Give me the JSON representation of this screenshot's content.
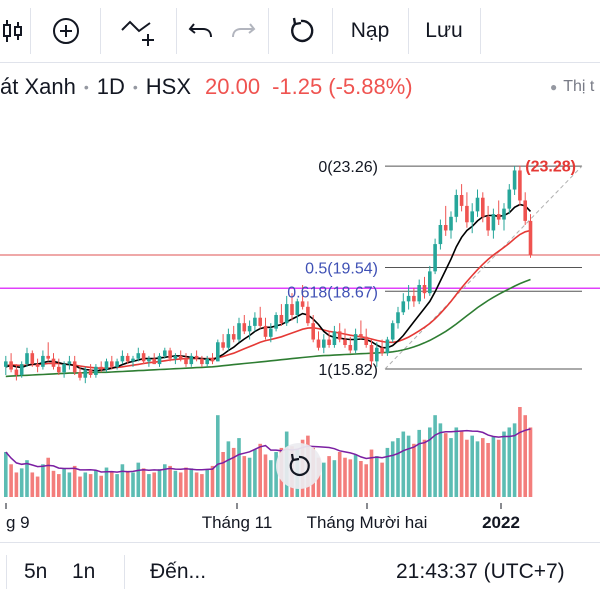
{
  "toolbar": {
    "add_indicator_icon": "plus-circle-icon",
    "draw_icon": "trend-line-plus-icon",
    "undo_icon": "undo-icon",
    "redo_icon": "redo-icon",
    "reload_icon": "reload-icon",
    "load_label": "Nạp",
    "save_label": "Lưu"
  },
  "legend": {
    "symbol": "át Xanh",
    "interval": "1D",
    "exchange": "HSX",
    "price": "20.00",
    "change": "-1.25",
    "change_pct": "(-5.88%)",
    "market_status": "Thị t"
  },
  "colors": {
    "up": "#26a69a",
    "down": "#ef5350",
    "ma_short": "#000000",
    "ma_mid": "#e53935",
    "ma_long": "#2e7d32",
    "volume_ma": "#7b1fa2",
    "fib_level": "#3f51b5",
    "fib_price_line": "#e57373",
    "fib_level_line": "#e040fb"
  },
  "chart_data": {
    "type": "candlestick",
    "y_range": [
      14.5,
      24.4
    ],
    "x_labels": [
      "g 9",
      "Tháng 11",
      "Tháng Mười hai",
      "2022"
    ],
    "fibonacci": {
      "levels": [
        {
          "label": "0(23.26)",
          "value": 23.26
        },
        {
          "label": "0.5(19.54)",
          "value": 19.54
        },
        {
          "label": "0.618(18.67)",
          "value": 18.67
        },
        {
          "label": "1(15.82)",
          "value": 15.82
        }
      ],
      "top_label": "(23.28)",
      "top_value": 23.28
    },
    "price_line": 20.0,
    "ohlc": [
      [
        15.9,
        16.3,
        15.6,
        16.1
      ],
      [
        16.1,
        16.4,
        15.7,
        15.8
      ],
      [
        15.8,
        16.0,
        15.4,
        15.6
      ],
      [
        15.6,
        16.1,
        15.5,
        16.0
      ],
      [
        16.0,
        16.6,
        15.9,
        16.4
      ],
      [
        16.4,
        16.5,
        15.9,
        16.0
      ],
      [
        16.0,
        16.2,
        15.7,
        15.9
      ],
      [
        15.9,
        16.5,
        15.8,
        16.3
      ],
      [
        16.3,
        16.8,
        16.1,
        16.2
      ],
      [
        16.2,
        16.4,
        15.8,
        15.9
      ],
      [
        15.9,
        16.2,
        15.6,
        15.7
      ],
      [
        15.7,
        16.1,
        15.5,
        16.0
      ],
      [
        16.0,
        16.3,
        15.8,
        16.1
      ],
      [
        16.1,
        16.3,
        15.6,
        15.7
      ],
      [
        15.7,
        15.9,
        15.4,
        15.5
      ],
      [
        15.5,
        15.9,
        15.3,
        15.8
      ],
      [
        15.8,
        16.0,
        15.5,
        15.6
      ],
      [
        15.6,
        16.0,
        15.5,
        15.9
      ],
      [
        15.9,
        16.1,
        15.7,
        15.8
      ],
      [
        15.8,
        16.2,
        15.7,
        16.1
      ],
      [
        16.1,
        16.3,
        15.8,
        15.9
      ],
      [
        15.9,
        16.2,
        15.8,
        16.1
      ],
      [
        16.1,
        16.5,
        16.0,
        16.3
      ],
      [
        16.3,
        16.4,
        16.0,
        16.1
      ],
      [
        16.1,
        16.3,
        15.9,
        16.2
      ],
      [
        16.2,
        16.6,
        16.1,
        16.4
      ],
      [
        16.4,
        16.5,
        16.0,
        16.1
      ],
      [
        16.1,
        16.3,
        15.9,
        16.2
      ],
      [
        16.2,
        16.4,
        16.0,
        16.0
      ],
      [
        16.0,
        16.4,
        15.9,
        16.3
      ],
      [
        16.3,
        16.6,
        16.2,
        16.5
      ],
      [
        16.5,
        16.6,
        16.1,
        16.2
      ],
      [
        16.2,
        16.4,
        16.0,
        16.3
      ],
      [
        16.3,
        16.5,
        16.1,
        16.2
      ],
      [
        16.2,
        16.4,
        15.9,
        16.0
      ],
      [
        16.0,
        16.4,
        15.9,
        16.3
      ],
      [
        16.3,
        16.5,
        16.1,
        16.2
      ],
      [
        16.2,
        16.3,
        15.9,
        16.0
      ],
      [
        16.0,
        16.3,
        15.9,
        16.2
      ],
      [
        16.2,
        16.4,
        16.0,
        16.1
      ],
      [
        16.1,
        16.9,
        16.1,
        16.8
      ],
      [
        16.8,
        17.1,
        16.5,
        16.6
      ],
      [
        16.6,
        17.3,
        16.5,
        17.1
      ],
      [
        17.1,
        17.4,
        16.8,
        16.9
      ],
      [
        16.9,
        17.7,
        16.8,
        17.5
      ],
      [
        17.5,
        17.8,
        17.1,
        17.2
      ],
      [
        17.2,
        17.6,
        16.9,
        17.4
      ],
      [
        17.4,
        17.9,
        17.2,
        17.7
      ],
      [
        17.7,
        18.1,
        17.3,
        17.4
      ],
      [
        17.4,
        17.7,
        16.9,
        17.0
      ],
      [
        17.0,
        17.5,
        16.8,
        17.3
      ],
      [
        17.3,
        17.9,
        17.2,
        17.8
      ],
      [
        17.8,
        18.2,
        17.4,
        17.5
      ],
      [
        17.5,
        18.5,
        17.4,
        18.2
      ],
      [
        18.2,
        18.6,
        17.6,
        17.8
      ],
      [
        17.8,
        18.4,
        17.5,
        18.3
      ],
      [
        18.3,
        18.9,
        18.0,
        18.1
      ],
      [
        18.1,
        18.3,
        17.4,
        17.5
      ],
      [
        17.5,
        17.8,
        16.8,
        16.9
      ],
      [
        16.9,
        17.2,
        16.5,
        16.6
      ],
      [
        16.6,
        17.1,
        16.4,
        16.9
      ],
      [
        16.9,
        17.2,
        16.6,
        16.7
      ],
      [
        16.7,
        17.4,
        16.6,
        17.2
      ],
      [
        17.2,
        17.5,
        16.8,
        16.9
      ],
      [
        16.9,
        17.3,
        16.6,
        16.7
      ],
      [
        16.7,
        17.0,
        16.4,
        16.5
      ],
      [
        16.5,
        17.3,
        16.4,
        17.1
      ],
      [
        17.1,
        17.6,
        16.9,
        17.0
      ],
      [
        17.0,
        17.3,
        16.6,
        16.7
      ],
      [
        16.7,
        16.9,
        15.9,
        16.1
      ],
      [
        16.1,
        16.8,
        15.9,
        16.6
      ],
      [
        16.6,
        16.9,
        16.3,
        16.4
      ],
      [
        16.4,
        17.0,
        16.3,
        16.9
      ],
      [
        16.9,
        17.6,
        16.8,
        17.5
      ],
      [
        17.5,
        18.1,
        17.3,
        17.9
      ],
      [
        17.9,
        18.6,
        17.8,
        18.3
      ],
      [
        18.3,
        18.9,
        18.0,
        18.5
      ],
      [
        18.5,
        18.8,
        18.1,
        18.3
      ],
      [
        18.3,
        19.1,
        18.2,
        18.9
      ],
      [
        18.9,
        19.2,
        18.4,
        18.6
      ],
      [
        18.6,
        19.6,
        18.5,
        19.4
      ],
      [
        19.4,
        20.6,
        19.3,
        20.4
      ],
      [
        20.4,
        21.3,
        20.2,
        21.1
      ],
      [
        21.1,
        21.8,
        20.7,
        20.9
      ],
      [
        20.9,
        21.6,
        20.6,
        21.4
      ],
      [
        21.4,
        22.4,
        21.2,
        22.2
      ],
      [
        22.2,
        22.6,
        21.6,
        21.8
      ],
      [
        21.8,
        22.3,
        21.0,
        21.2
      ],
      [
        21.2,
        21.9,
        20.8,
        21.6
      ],
      [
        21.6,
        22.4,
        21.4,
        22.1
      ],
      [
        22.1,
        22.3,
        21.2,
        21.4
      ],
      [
        21.4,
        21.8,
        20.7,
        20.9
      ],
      [
        20.9,
        21.7,
        20.6,
        21.5
      ],
      [
        21.5,
        22.0,
        21.1,
        21.3
      ],
      [
        21.3,
        21.9,
        20.9,
        21.7
      ],
      [
        21.7,
        22.6,
        21.5,
        22.4
      ],
      [
        22.4,
        23.26,
        22.2,
        23.1
      ],
      [
        23.1,
        23.28,
        21.8,
        22.0
      ],
      [
        22.0,
        22.3,
        21.1,
        21.25
      ],
      [
        21.25,
        21.5,
        19.9,
        20.0
      ]
    ],
    "ma_short": [
      15.9,
      15.95,
      15.9,
      15.88,
      15.95,
      16.0,
      16.0,
      16.05,
      16.1,
      16.1,
      16.05,
      16.0,
      15.98,
      15.95,
      15.85,
      15.8,
      15.78,
      15.75,
      15.78,
      15.8,
      15.85,
      15.9,
      15.98,
      16.05,
      16.1,
      16.15,
      16.2,
      16.2,
      16.2,
      16.22,
      16.25,
      16.28,
      16.3,
      16.3,
      16.28,
      16.25,
      16.22,
      16.2,
      16.18,
      16.15,
      16.25,
      16.35,
      16.5,
      16.62,
      16.78,
      16.92,
      17.05,
      17.2,
      17.3,
      17.35,
      17.35,
      17.4,
      17.45,
      17.55,
      17.65,
      17.75,
      17.85,
      17.8,
      17.65,
      17.45,
      17.2,
      17.05,
      16.98,
      16.95,
      16.92,
      16.9,
      16.9,
      16.92,
      16.9,
      16.82,
      16.7,
      16.6,
      16.6,
      16.68,
      16.85,
      17.05,
      17.3,
      17.55,
      17.8,
      18.05,
      18.3,
      18.65,
      19.05,
      19.45,
      19.85,
      20.3,
      20.65,
      20.9,
      21.05,
      21.25,
      21.4,
      21.45,
      21.45,
      21.42,
      21.45,
      21.55,
      21.75,
      21.85,
      21.8,
      21.6
    ],
    "ma_mid": [
      15.95,
      15.97,
      15.96,
      15.95,
      15.96,
      15.98,
      15.99,
      16.0,
      16.02,
      16.03,
      16.02,
      16.0,
      15.98,
      15.96,
      15.93,
      15.9,
      15.88,
      15.86,
      15.85,
      15.85,
      15.86,
      15.88,
      15.9,
      15.93,
      15.96,
      15.99,
      16.02,
      16.05,
      16.07,
      16.09,
      16.12,
      16.15,
      16.17,
      16.19,
      16.2,
      16.2,
      16.2,
      16.2,
      16.2,
      16.2,
      16.23,
      16.28,
      16.34,
      16.4,
      16.48,
      16.56,
      16.64,
      16.72,
      16.8,
      16.86,
      16.9,
      16.95,
      17.0,
      17.07,
      17.14,
      17.21,
      17.28,
      17.32,
      17.33,
      17.3,
      17.25,
      17.2,
      17.17,
      17.14,
      17.1,
      17.06,
      17.03,
      17.0,
      16.97,
      16.92,
      16.87,
      16.83,
      16.8,
      16.8,
      16.83,
      16.9,
      16.99,
      17.1,
      17.22,
      17.35,
      17.49,
      17.66,
      17.86,
      18.07,
      18.3,
      18.55,
      18.8,
      19.03,
      19.25,
      19.46,
      19.66,
      19.84,
      20.0,
      20.14,
      20.28,
      20.43,
      20.6,
      20.75,
      20.85,
      20.9
    ],
    "ma_long": [
      15.55,
      15.56,
      15.57,
      15.58,
      15.59,
      15.6,
      15.61,
      15.62,
      15.63,
      15.64,
      15.65,
      15.66,
      15.67,
      15.67,
      15.68,
      15.68,
      15.69,
      15.69,
      15.7,
      15.7,
      15.71,
      15.72,
      15.73,
      15.74,
      15.75,
      15.76,
      15.77,
      15.78,
      15.79,
      15.8,
      15.81,
      15.82,
      15.83,
      15.84,
      15.85,
      15.86,
      15.87,
      15.88,
      15.89,
      15.9,
      15.92,
      15.94,
      15.96,
      15.98,
      16.0,
      16.02,
      16.04,
      16.06,
      16.08,
      16.1,
      16.12,
      16.14,
      16.16,
      16.18,
      16.2,
      16.22,
      16.24,
      16.26,
      16.28,
      16.3,
      16.31,
      16.32,
      16.33,
      16.34,
      16.35,
      16.36,
      16.37,
      16.38,
      16.39,
      16.4,
      16.41,
      16.42,
      16.43,
      16.45,
      16.48,
      16.52,
      16.57,
      16.63,
      16.7,
      16.78,
      16.87,
      16.97,
      17.08,
      17.2,
      17.33,
      17.47,
      17.62,
      17.77,
      17.92,
      18.07,
      18.2,
      18.33,
      18.45,
      18.56,
      18.66,
      18.76,
      18.86,
      18.95,
      19.03,
      19.1
    ],
    "volume": [
      55,
      40,
      30,
      35,
      45,
      30,
      25,
      40,
      48,
      32,
      28,
      35,
      30,
      38,
      25,
      30,
      28,
      33,
      26,
      36,
      30,
      28,
      40,
      32,
      30,
      42,
      35,
      28,
      30,
      34,
      40,
      38,
      32,
      30,
      36,
      35,
      30,
      28,
      34,
      38,
      100,
      55,
      68,
      60,
      72,
      50,
      48,
      58,
      65,
      52,
      45,
      55,
      60,
      80,
      62,
      58,
      70,
      75,
      60,
      48,
      42,
      50,
      45,
      55,
      48,
      46,
      52,
      44,
      40,
      58,
      50,
      42,
      60,
      68,
      72,
      80,
      75,
      65,
      82,
      70,
      85,
      100,
      90,
      78,
      72,
      85,
      80,
      70,
      75,
      68,
      72,
      66,
      74,
      70,
      80,
      85,
      90,
      110,
      100,
      85
    ]
  },
  "bottombar": {
    "range_5d": "5n",
    "range_1m": "1n",
    "goto": "Đến...",
    "time": "21:43:37 (UTC+7)"
  }
}
